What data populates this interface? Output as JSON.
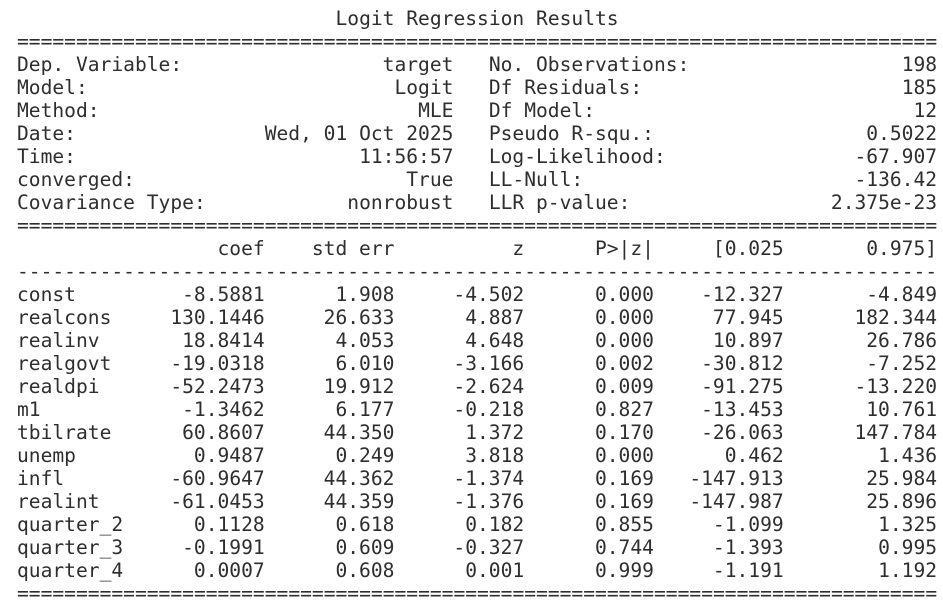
{
  "title": "Logit Regression Results",
  "info": {
    "left": [
      {
        "label": "Dep. Variable:",
        "value": "target"
      },
      {
        "label": "Model:",
        "value": "Logit"
      },
      {
        "label": "Method:",
        "value": "MLE"
      },
      {
        "label": "Date:",
        "value": "Wed, 01 Oct 2025"
      },
      {
        "label": "Time:",
        "value": "11:56:57"
      },
      {
        "label": "converged:",
        "value": "True"
      },
      {
        "label": "Covariance Type:",
        "value": "nonrobust"
      }
    ],
    "right": [
      {
        "label": "No. Observations:",
        "value": "198"
      },
      {
        "label": "Df Residuals:",
        "value": "185"
      },
      {
        "label": "Df Model:",
        "value": "12"
      },
      {
        "label": "Pseudo R-squ.:",
        "value": "0.5022"
      },
      {
        "label": "Log-Likelihood:",
        "value": "-67.907"
      },
      {
        "label": "LL-Null:",
        "value": "-136.42"
      },
      {
        "label": "LLR p-value:",
        "value": "2.375e-23"
      }
    ]
  },
  "coef_table": {
    "headers": [
      "",
      "coef",
      "std err",
      "z",
      "P>|z|",
      "[0.025",
      "0.975]"
    ],
    "rows": [
      {
        "name": "const",
        "coef": "-8.5881",
        "std_err": "1.908",
        "z": "-4.502",
        "p": "0.000",
        "ci_low": "-12.327",
        "ci_high": "-4.849"
      },
      {
        "name": "realcons",
        "coef": "130.1446",
        "std_err": "26.633",
        "z": "4.887",
        "p": "0.000",
        "ci_low": "77.945",
        "ci_high": "182.344"
      },
      {
        "name": "realinv",
        "coef": "18.8414",
        "std_err": "4.053",
        "z": "4.648",
        "p": "0.000",
        "ci_low": "10.897",
        "ci_high": "26.786"
      },
      {
        "name": "realgovt",
        "coef": "-19.0318",
        "std_err": "6.010",
        "z": "-3.166",
        "p": "0.002",
        "ci_low": "-30.812",
        "ci_high": "-7.252"
      },
      {
        "name": "realdpi",
        "coef": "-52.2473",
        "std_err": "19.912",
        "z": "-2.624",
        "p": "0.009",
        "ci_low": "-91.275",
        "ci_high": "-13.220"
      },
      {
        "name": "m1",
        "coef": "-1.3462",
        "std_err": "6.177",
        "z": "-0.218",
        "p": "0.827",
        "ci_low": "-13.453",
        "ci_high": "10.761"
      },
      {
        "name": "tbilrate",
        "coef": "60.8607",
        "std_err": "44.350",
        "z": "1.372",
        "p": "0.170",
        "ci_low": "-26.063",
        "ci_high": "147.784"
      },
      {
        "name": "unemp",
        "coef": "0.9487",
        "std_err": "0.249",
        "z": "3.818",
        "p": "0.000",
        "ci_low": "0.462",
        "ci_high": "1.436"
      },
      {
        "name": "infl",
        "coef": "-60.9647",
        "std_err": "44.362",
        "z": "-1.374",
        "p": "0.169",
        "ci_low": "-147.913",
        "ci_high": "25.984"
      },
      {
        "name": "realint",
        "coef": "-61.0453",
        "std_err": "44.359",
        "z": "-1.376",
        "p": "0.169",
        "ci_low": "-147.987",
        "ci_high": "25.896"
      },
      {
        "name": "quarter_2",
        "coef": "0.1128",
        "std_err": "0.618",
        "z": "0.182",
        "p": "0.855",
        "ci_low": "-1.099",
        "ci_high": "1.325"
      },
      {
        "name": "quarter_3",
        "coef": "-0.1991",
        "std_err": "0.609",
        "z": "-0.327",
        "p": "0.744",
        "ci_low": "-1.393",
        "ci_high": "0.995"
      },
      {
        "name": "quarter_4",
        "coef": "0.0007",
        "std_err": "0.608",
        "z": "0.001",
        "p": "0.999",
        "ci_low": "-1.191",
        "ci_high": "1.192"
      }
    ]
  }
}
